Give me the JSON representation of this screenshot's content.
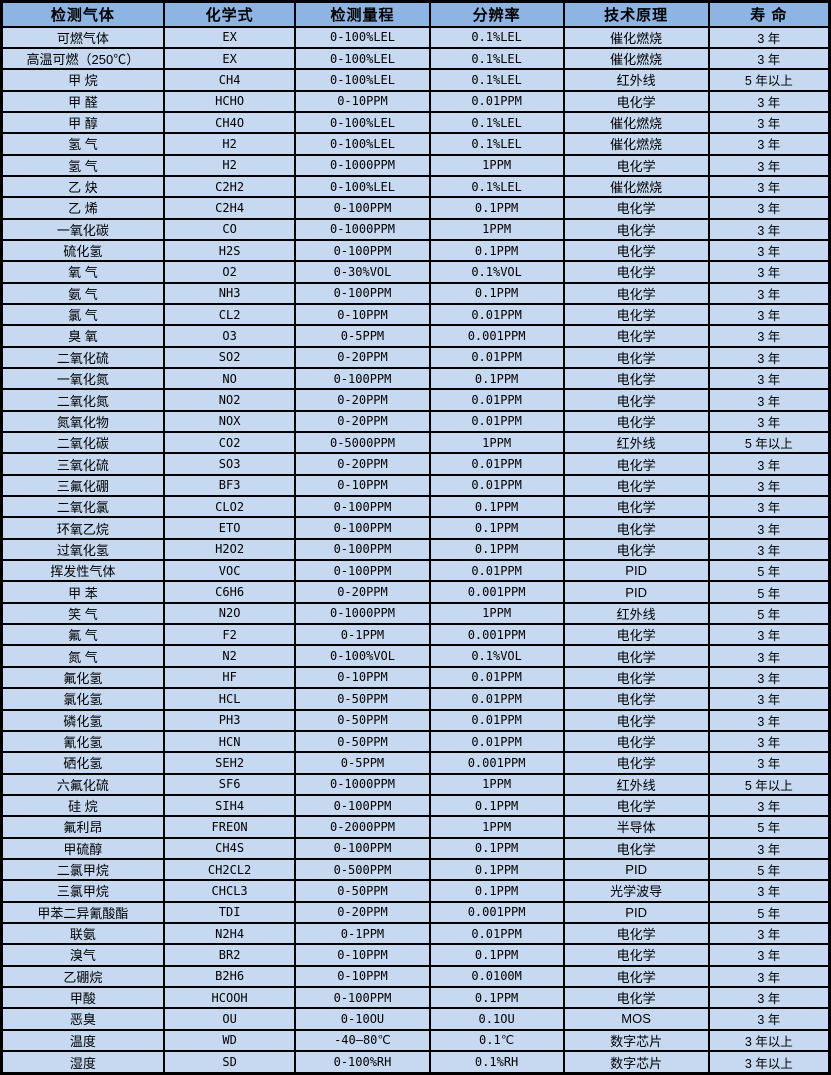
{
  "colors": {
    "header_bg": "#8DB4E2",
    "row_bg": "#C6D9F1",
    "border": "#000000",
    "text": "#000000"
  },
  "chart_data": {
    "type": "table",
    "title": "",
    "columns": [
      "检测气体",
      "化学式",
      "检测量程",
      "分辨率",
      "技术原理",
      "寿 命"
    ],
    "rows": [
      [
        "可燃气体",
        "EX",
        "0-100%LEL",
        "0.1%LEL",
        "催化燃烧",
        "3 年"
      ],
      [
        "高温可燃（250℃）",
        "EX",
        "0-100%LEL",
        "0.1%LEL",
        "催化燃烧",
        "3 年"
      ],
      [
        "甲 烷",
        "CH4",
        "0-100%LEL",
        "0.1%LEL",
        "红外线",
        "5 年以上"
      ],
      [
        "甲 醛",
        "HCHO",
        "0-10PPM",
        "0.01PPM",
        "电化学",
        "3 年"
      ],
      [
        "甲 醇",
        "CH4O",
        "0-100%LEL",
        "0.1%LEL",
        "催化燃烧",
        "3 年"
      ],
      [
        "氢 气",
        "H2",
        "0-100%LEL",
        "0.1%LEL",
        "催化燃烧",
        "3 年"
      ],
      [
        "氢 气",
        "H2",
        "0-1000PPM",
        "1PPM",
        "电化学",
        "3 年"
      ],
      [
        "乙 炔",
        "C2H2",
        "0-100%LEL",
        "0.1%LEL",
        "催化燃烧",
        "3 年"
      ],
      [
        "乙 烯",
        "C2H4",
        "0-100PPM",
        "0.1PPM",
        "电化学",
        "3 年"
      ],
      [
        "一氧化碳",
        "CO",
        "0-1000PPM",
        "1PPM",
        "电化学",
        "3 年"
      ],
      [
        "硫化氢",
        "H2S",
        "0-100PPM",
        "0.1PPM",
        "电化学",
        "3 年"
      ],
      [
        "氧 气",
        "O2",
        "0-30%VOL",
        "0.1%VOL",
        "电化学",
        "3 年"
      ],
      [
        "氨 气",
        "NH3",
        "0-100PPM",
        "0.1PPM",
        "电化学",
        "3 年"
      ],
      [
        "氯 气",
        "CL2",
        "0-10PPM",
        "0.01PPM",
        "电化学",
        "3 年"
      ],
      [
        "臭 氧",
        "O3",
        "0-5PPM",
        "0.001PPM",
        "电化学",
        "3 年"
      ],
      [
        "二氧化硫",
        "SO2",
        "0-20PPM",
        "0.01PPM",
        "电化学",
        "3 年"
      ],
      [
        "一氧化氮",
        "NO",
        "0-100PPM",
        "0.1PPM",
        "电化学",
        "3 年"
      ],
      [
        "二氧化氮",
        "NO2",
        "0-20PPM",
        "0.01PPM",
        "电化学",
        "3 年"
      ],
      [
        "氮氧化物",
        "NOX",
        "0-20PPM",
        "0.01PPM",
        "电化学",
        "3 年"
      ],
      [
        "二氧化碳",
        "CO2",
        "0-5000PPM",
        "1PPM",
        "红外线",
        "5 年以上"
      ],
      [
        "三氧化硫",
        "SO3",
        "0-20PPM",
        "0.01PPM",
        "电化学",
        "3 年"
      ],
      [
        "三氟化硼",
        "BF3",
        "0-10PPM",
        "0.01PPM",
        "电化学",
        "3 年"
      ],
      [
        "二氧化氯",
        "CLO2",
        "0-100PPM",
        "0.1PPM",
        "电化学",
        "3 年"
      ],
      [
        "环氧乙烷",
        "ETO",
        "0-100PPM",
        "0.1PPM",
        "电化学",
        "3 年"
      ],
      [
        "过氧化氢",
        "H2O2",
        "0-100PPM",
        "0.1PPM",
        "电化学",
        "3 年"
      ],
      [
        "挥发性气体",
        "VOC",
        "0-100PPM",
        "0.01PPM",
        "PID",
        "5 年"
      ],
      [
        "甲 苯",
        "C6H6",
        "0-20PPM",
        "0.001PPM",
        "PID",
        "5 年"
      ],
      [
        "笑 气",
        "N2O",
        "0-1000PPM",
        "1PPM",
        "红外线",
        "5 年"
      ],
      [
        "氟 气",
        "F2",
        "0-1PPM",
        "0.001PPM",
        "电化学",
        "3 年"
      ],
      [
        "氮 气",
        "N2",
        "0-100%VOL",
        "0.1%VOL",
        "电化学",
        "3 年"
      ],
      [
        "氟化氢",
        "HF",
        "0-10PPM",
        "0.01PPM",
        "电化学",
        "3 年"
      ],
      [
        "氯化氢",
        "HCL",
        "0-50PPM",
        "0.01PPM",
        "电化学",
        "3 年"
      ],
      [
        "磷化氢",
        "PH3",
        "0-50PPM",
        "0.01PPM",
        "电化学",
        "3 年"
      ],
      [
        "氰化氢",
        "HCN",
        "0-50PPM",
        "0.01PPM",
        "电化学",
        "3 年"
      ],
      [
        "硒化氢",
        "SEH2",
        "0-5PPM",
        "0.001PPM",
        "电化学",
        "3 年"
      ],
      [
        "六氟化硫",
        "SF6",
        "0-1000PPM",
        "1PPM",
        "红外线",
        "5 年以上"
      ],
      [
        "硅 烷",
        "SIH4",
        "0-100PPM",
        "0.1PPM",
        "电化学",
        "3 年"
      ],
      [
        "氟利昂",
        "FREON",
        "0-2000PPM",
        "1PPM",
        "半导体",
        "5 年"
      ],
      [
        "甲硫醇",
        "CH4S",
        "0-100PPM",
        "0.1PPM",
        "电化学",
        "3 年"
      ],
      [
        "二氯甲烷",
        "CH2CL2",
        "0-500PPM",
        "0.1PPM",
        "PID",
        "5 年"
      ],
      [
        "三氯甲烷",
        "CHCL3",
        "0-50PPM",
        "0.1PPM",
        "光学波导",
        "3 年"
      ],
      [
        "甲苯二异氰酸酯",
        "TDI",
        "0-20PPM",
        "0.001PPM",
        "PID",
        "5 年"
      ],
      [
        "联氨",
        "N2H4",
        "0-1PPM",
        "0.01PPM",
        "电化学",
        "3 年"
      ],
      [
        "溴气",
        "BR2",
        "0-10PPM",
        "0.1PPM",
        "电化学",
        "3 年"
      ],
      [
        "乙硼烷",
        "B2H6",
        "0-10PPM",
        "0.0100M",
        "电化学",
        "3 年"
      ],
      [
        "甲酸",
        "HCOOH",
        "0-100PPM",
        "0.1PPM",
        "电化学",
        "3 年"
      ],
      [
        "恶臭",
        "OU",
        "0-10OU",
        "0.1OU",
        "MOS",
        "3 年"
      ],
      [
        "温度",
        "WD",
        "-40—80℃",
        "0.1℃",
        "数字芯片",
        "3 年以上"
      ],
      [
        "湿度",
        "SD",
        "0-100%RH",
        "0.1%RH",
        "数字芯片",
        "3 年以上"
      ]
    ]
  }
}
